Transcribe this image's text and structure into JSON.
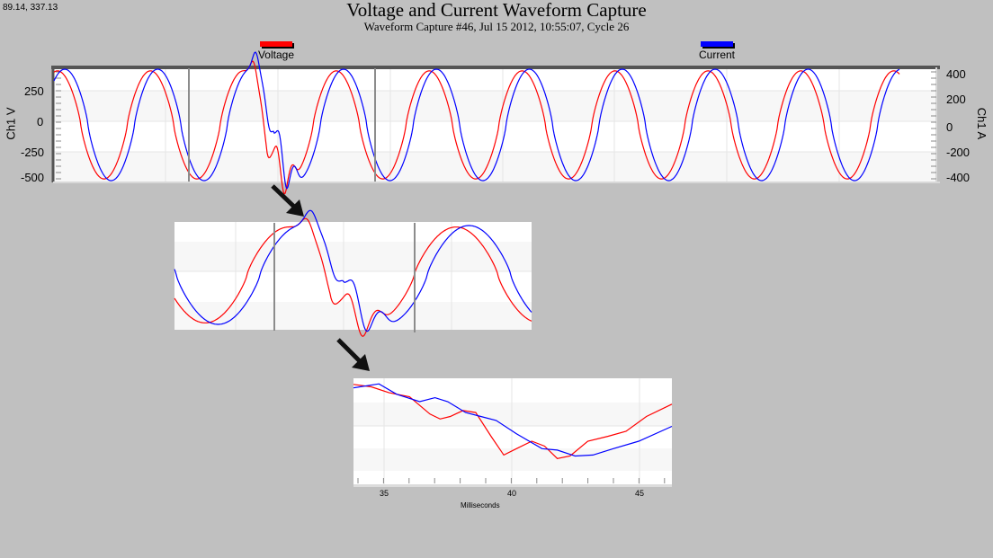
{
  "cursor_readout": "89.14, 337.13",
  "header": {
    "title": "Voltage and Current Waveform Capture",
    "subtitle": "Waveform Capture #46, Jul 15 2012, 10:55:07,  Cycle 26"
  },
  "legend": [
    {
      "label": "Voltage",
      "color": "#ff0000"
    },
    {
      "label": "Current",
      "color": "#0000ff"
    }
  ],
  "main_chart": {
    "left_axis": {
      "label": "Ch1 V",
      "ticks": [
        "250",
        "0",
        "-250",
        "-500"
      ]
    },
    "right_axis": {
      "label": "Ch1 A",
      "ticks": [
        "400",
        "200",
        "0",
        "-200",
        "-400"
      ]
    }
  },
  "zoom3": {
    "x_ticks": [
      "35",
      "40",
      "45"
    ],
    "x_label": "Milliseconds"
  },
  "chart_data": [
    {
      "type": "line",
      "title": "Voltage and Current Waveform Capture",
      "subtitle": "Waveform Capture #46, Jul 15 2012, 10:55:07,  Cycle 26",
      "xlabel": "",
      "ylabel": "Ch1 V",
      "ylabel_right": "Ch1 A",
      "ylim": [
        -500,
        400
      ],
      "ylim_right": [
        -400,
        400
      ],
      "grid": true,
      "legend_position": "top",
      "cycles_shown": 9.5,
      "series": [
        {
          "name": "Voltage",
          "axis": "left",
          "color": "#ff0000",
          "amplitude": 370,
          "note": "sinusoid, flattened peaks; sag/distortion in 2nd-3rd cycle"
        },
        {
          "name": "Current",
          "axis": "right",
          "color": "#0000ff",
          "amplitude": 380,
          "note": "lags voltage by ~1.1 ms"
        }
      ]
    },
    {
      "type": "line",
      "title": "Zoom 1 (marked region of main chart)",
      "grid": true,
      "series": [
        {
          "name": "Voltage",
          "color": "#ff0000"
        },
        {
          "name": "Current",
          "color": "#0000ff"
        }
      ]
    },
    {
      "type": "line",
      "title": "Zoom 2 (marked region of zoom 1)",
      "xlabel": "Milliseconds",
      "x_ticks": [
        35,
        40,
        45
      ],
      "xlim": [
        33.8,
        46.3
      ],
      "grid": true,
      "series": [
        {
          "name": "Voltage",
          "color": "#ff0000",
          "x": [
            33.8,
            34.5,
            35.2,
            36.0,
            36.8,
            37.2,
            37.6,
            38.1,
            38.6,
            39.2,
            39.7,
            40.2,
            40.8,
            41.3,
            41.8,
            42.3,
            43.0,
            43.8,
            44.5,
            45.3,
            46.3
          ],
          "y": [
            0.95,
            0.9,
            0.78,
            0.7,
            0.35,
            0.25,
            0.3,
            0.42,
            0.38,
            -0.1,
            -0.48,
            -0.35,
            -0.2,
            -0.3,
            -0.55,
            -0.5,
            -0.2,
            -0.1,
            0.0,
            0.3,
            0.55
          ]
        },
        {
          "name": "Current",
          "color": "#0000ff",
          "x": [
            33.8,
            34.8,
            35.5,
            36.4,
            37.0,
            37.5,
            38.2,
            38.8,
            39.4,
            40.2,
            41.2,
            41.8,
            42.5,
            43.2,
            44.0,
            45.0,
            46.3
          ],
          "y": [
            0.88,
            0.96,
            0.75,
            0.6,
            0.68,
            0.6,
            0.38,
            0.3,
            0.22,
            -0.05,
            -0.35,
            -0.38,
            -0.5,
            -0.48,
            -0.35,
            -0.2,
            0.1
          ]
        }
      ]
    }
  ]
}
